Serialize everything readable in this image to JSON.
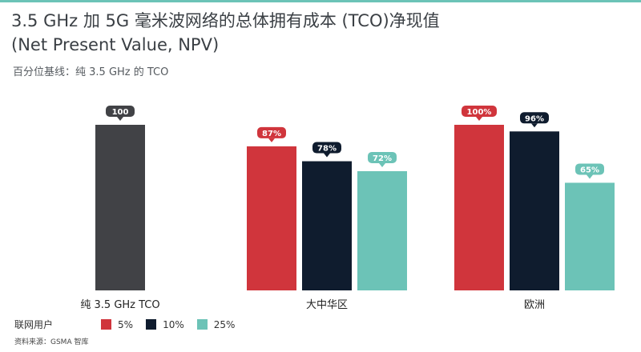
{
  "header": {
    "title_line1": "3.5 GHz 加 5G 毫米波网络的总体拥有成本 (TCO)净现值",
    "title_line2": "(Net Present Value, NPV)",
    "subtitle": "百分位基线：纯 3.5 GHz 的 TCO"
  },
  "legend": {
    "label": "联网用户",
    "items": [
      {
        "name": "5%",
        "color": "#d0353c"
      },
      {
        "name": "10%",
        "color": "#0f1c2e"
      },
      {
        "name": "25%",
        "color": "#6cc3b7"
      }
    ]
  },
  "source": "资料来源：GSMA 智库",
  "chart_data": {
    "type": "bar",
    "title": "3.5 GHz 加 5G 毫米波网络的总体拥有成本 (TCO)净现值 (Net Present Value, NPV)",
    "subtitle": "百分位基线：纯 3.5 GHz 的 TCO",
    "ylim": [
      0,
      100
    ],
    "grid": false,
    "legend_position": "bottom-left",
    "groups": [
      {
        "category": "纯 3.5 GHz TCO",
        "bars": [
          {
            "series": "baseline",
            "value": 100,
            "label": "100",
            "color": "#414246"
          }
        ]
      },
      {
        "category": "大中华区",
        "bars": [
          {
            "series": "5%",
            "value": 87,
            "label": "87%",
            "color": "#d0353c"
          },
          {
            "series": "10%",
            "value": 78,
            "label": "78%",
            "color": "#0f1c2e"
          },
          {
            "series": "25%",
            "value": 72,
            "label": "72%",
            "color": "#6cc3b7"
          }
        ]
      },
      {
        "category": "欧洲",
        "bars": [
          {
            "series": "5%",
            "value": 100,
            "label": "100%",
            "color": "#d0353c"
          },
          {
            "series": "10%",
            "value": 96,
            "label": "96%",
            "color": "#0f1c2e"
          },
          {
            "series": "25%",
            "value": 65,
            "label": "65%",
            "color": "#6cc3b7"
          }
        ]
      }
    ]
  }
}
